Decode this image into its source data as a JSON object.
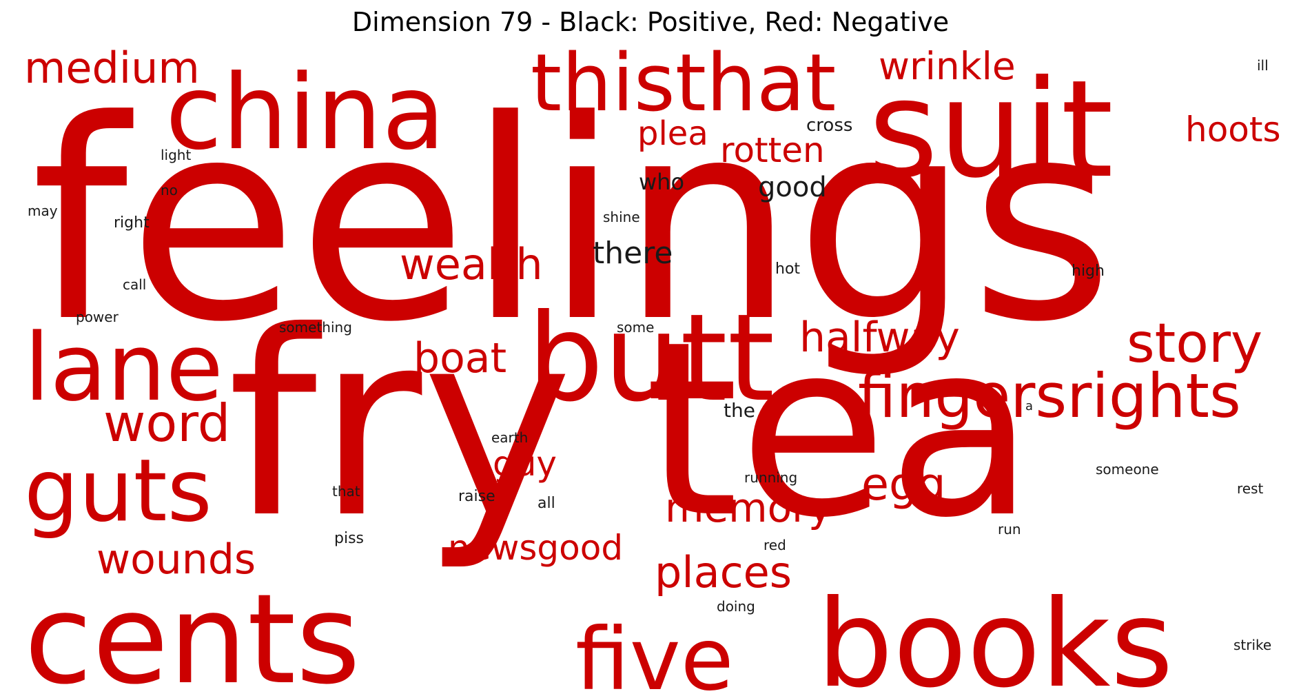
{
  "title": "Dimension 79 - Black: Positive, Red: Negative",
  "colors": {
    "negative": "#cc0000",
    "positive": "#1a1a1a",
    "background": "#ffffff"
  },
  "words": [
    {
      "text": "feelings",
      "sign": "negative"
    },
    {
      "text": "fry",
      "sign": "negative"
    },
    {
      "text": "tea",
      "sign": "negative"
    },
    {
      "text": "suit",
      "sign": "negative"
    },
    {
      "text": "china",
      "sign": "negative"
    },
    {
      "text": "cents",
      "sign": "negative"
    },
    {
      "text": "butt",
      "sign": "negative"
    },
    {
      "text": "books",
      "sign": "negative"
    },
    {
      "text": "thisthat",
      "sign": "negative"
    },
    {
      "text": "lane",
      "sign": "negative"
    },
    {
      "text": "guts",
      "sign": "negative"
    },
    {
      "text": "five",
      "sign": "negative"
    },
    {
      "text": "fingersrights",
      "sign": "negative"
    },
    {
      "text": "story",
      "sign": "negative"
    },
    {
      "text": "halfway",
      "sign": "negative"
    },
    {
      "text": "wrinkle",
      "sign": "negative"
    },
    {
      "text": "medium",
      "sign": "negative"
    },
    {
      "text": "word",
      "sign": "negative"
    },
    {
      "text": "wealth",
      "sign": "negative"
    },
    {
      "text": "memory",
      "sign": "negative"
    },
    {
      "text": "places",
      "sign": "negative"
    },
    {
      "text": "wounds",
      "sign": "negative"
    },
    {
      "text": "boat",
      "sign": "negative"
    },
    {
      "text": "egg",
      "sign": "negative"
    },
    {
      "text": "hoots",
      "sign": "negative"
    },
    {
      "text": "newsgood",
      "sign": "negative"
    },
    {
      "text": "rotten",
      "sign": "negative"
    },
    {
      "text": "plea",
      "sign": "negative"
    },
    {
      "text": "guy",
      "sign": "negative"
    },
    {
      "text": "there",
      "sign": "positive"
    },
    {
      "text": "good",
      "sign": "positive"
    },
    {
      "text": "who",
      "sign": "positive"
    },
    {
      "text": "the",
      "sign": "positive"
    },
    {
      "text": "cross",
      "sign": "positive"
    },
    {
      "text": "hot",
      "sign": "positive"
    },
    {
      "text": "high",
      "sign": "positive"
    },
    {
      "text": "shine",
      "sign": "positive"
    },
    {
      "text": "some",
      "sign": "positive"
    },
    {
      "text": "right",
      "sign": "positive"
    },
    {
      "text": "light",
      "sign": "positive"
    },
    {
      "text": "no",
      "sign": "positive"
    },
    {
      "text": "may",
      "sign": "positive"
    },
    {
      "text": "call",
      "sign": "positive"
    },
    {
      "text": "power",
      "sign": "positive"
    },
    {
      "text": "something",
      "sign": "positive"
    },
    {
      "text": "earth",
      "sign": "positive"
    },
    {
      "text": "running",
      "sign": "positive"
    },
    {
      "text": "raise",
      "sign": "positive"
    },
    {
      "text": "all",
      "sign": "positive"
    },
    {
      "text": "that",
      "sign": "positive"
    },
    {
      "text": "piss",
      "sign": "positive"
    },
    {
      "text": "red",
      "sign": "positive"
    },
    {
      "text": "doing",
      "sign": "positive"
    },
    {
      "text": "run",
      "sign": "positive"
    },
    {
      "text": "someone",
      "sign": "positive"
    },
    {
      "text": "rest",
      "sign": "positive"
    },
    {
      "text": "strike",
      "sign": "positive"
    },
    {
      "text": "ill",
      "sign": "positive"
    },
    {
      "text": "a",
      "sign": "positive"
    }
  ]
}
